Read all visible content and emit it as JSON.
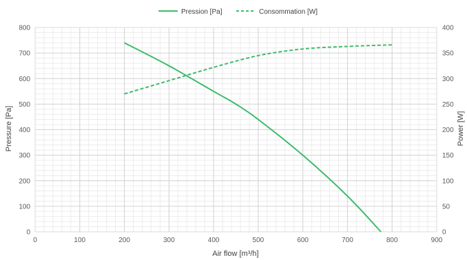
{
  "chart_data": {
    "type": "line",
    "legend_position": "top",
    "grid": true,
    "xlabel": "Air flow [m³/h]",
    "ylabel_left": "Pressure [Pa]",
    "ylabel_right": "Power [W]",
    "xlim": [
      0,
      900
    ],
    "x_ticks": [
      0,
      100,
      200,
      300,
      400,
      500,
      600,
      700,
      800,
      900
    ],
    "ylim_left": [
      0,
      800
    ],
    "y_left_ticks": [
      0,
      100,
      200,
      300,
      400,
      500,
      600,
      700,
      800
    ],
    "ylim_right": [
      0,
      400
    ],
    "y_right_ticks": [
      0,
      50,
      100,
      150,
      200,
      250,
      300,
      350,
      400
    ],
    "series": [
      {
        "name": "Pression [Pa]",
        "axis": "left",
        "style": "solid",
        "color": "#3dbb6a",
        "x": [
          200,
          300,
          400,
          450,
          500,
          600,
          700,
          775
        ],
        "values": [
          740,
          650,
          550,
          500,
          440,
          300,
          140,
          0
        ]
      },
      {
        "name": "Consommation [W]",
        "axis": "right",
        "style": "dashed",
        "color": "#3dbb6a",
        "x": [
          200,
          300,
          400,
          500,
          600,
          700,
          800
        ],
        "values": [
          270,
          296,
          322,
          345,
          358,
          363,
          366
        ]
      }
    ]
  }
}
